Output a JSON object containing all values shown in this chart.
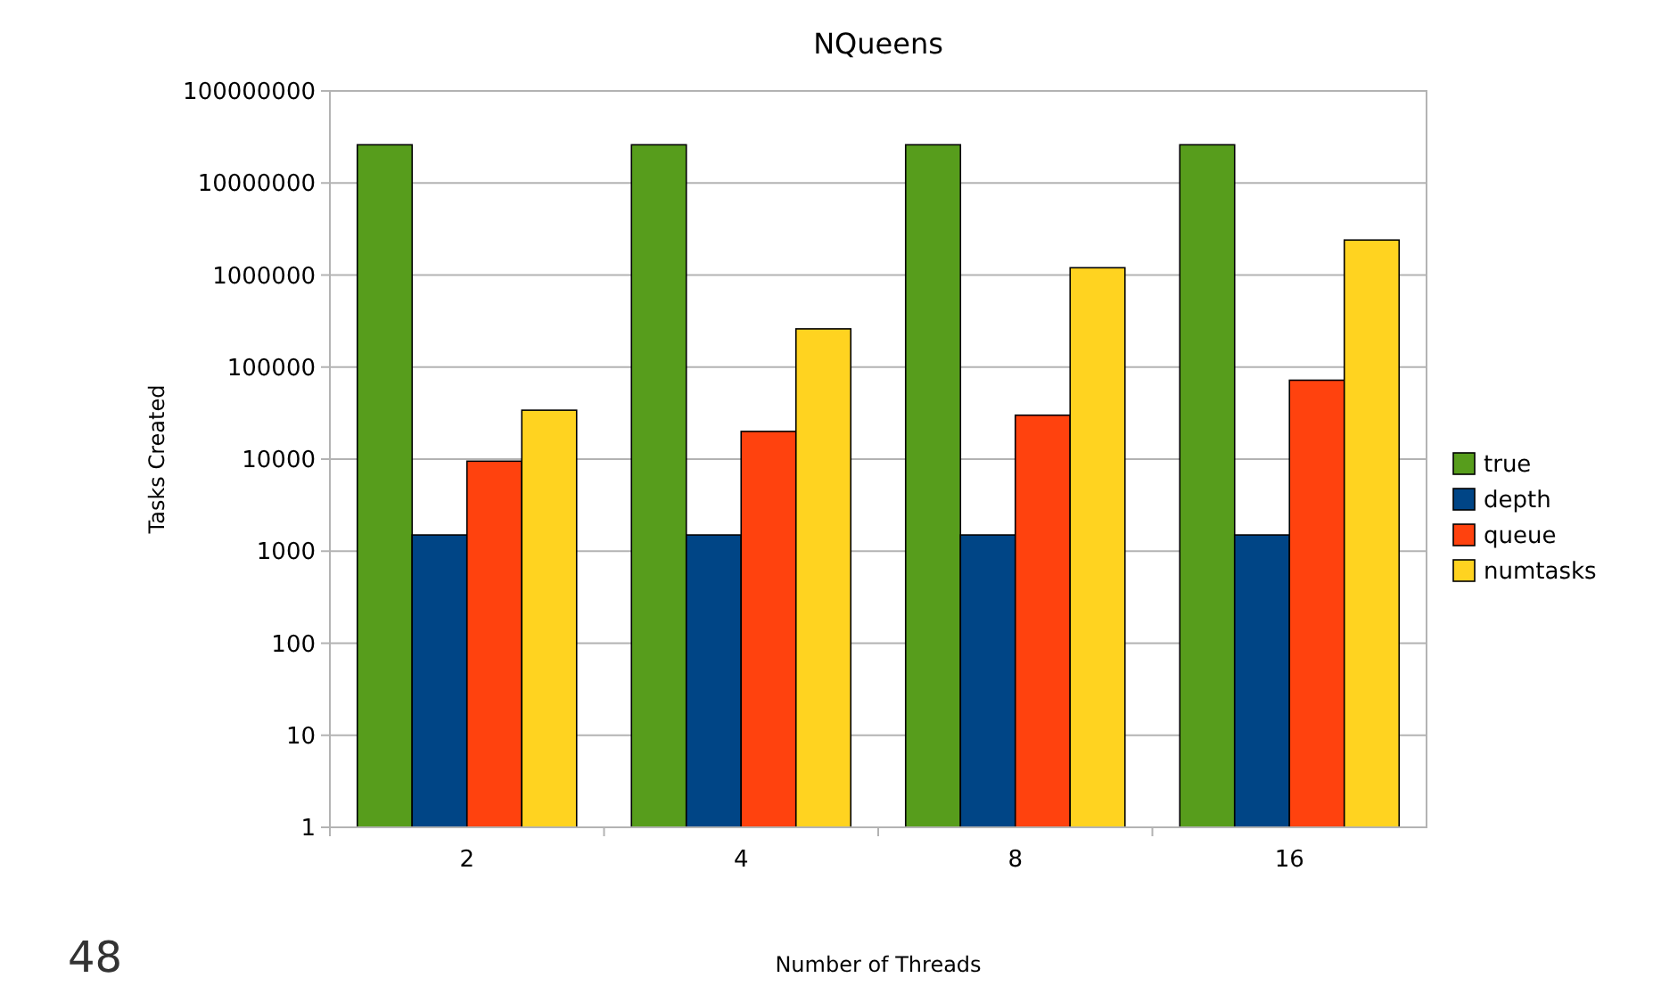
{
  "chart_data": {
    "type": "bar",
    "title": "NQueens",
    "xlabel": "Number of Threads",
    "ylabel": "Tasks Created",
    "categories": [
      "2",
      "4",
      "8",
      "16"
    ],
    "log": "y",
    "ylim": [
      1,
      100000000
    ],
    "yticks": [
      1,
      10,
      100,
      1000,
      10000,
      100000,
      1000000,
      10000000,
      100000000
    ],
    "grid": "y",
    "legend": "right",
    "annotations": [
      "48"
    ],
    "series": [
      {
        "name": "true",
        "color": "#579d1c",
        "values": [
          26000000,
          26000000,
          26000000,
          26000000
        ]
      },
      {
        "name": "depth",
        "color": "#004586",
        "values": [
          1500,
          1500,
          1500,
          1500
        ]
      },
      {
        "name": "queue",
        "color": "#ff420e",
        "values": [
          9500,
          20000,
          30000,
          72000
        ]
      },
      {
        "name": "numtasks",
        "color": "#ffd320",
        "values": [
          34000,
          260000,
          1200000,
          2400000
        ]
      }
    ]
  }
}
